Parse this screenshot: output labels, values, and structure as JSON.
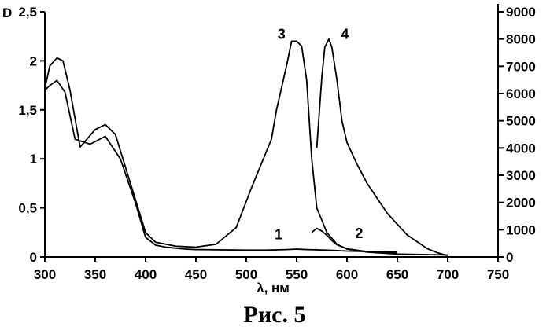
{
  "chart_data": {
    "type": "line",
    "title": "",
    "caption": "Рис. 5",
    "xlabel": "λ, нм",
    "ylabel": "D",
    "xlim": [
      300,
      750
    ],
    "ylim": [
      0,
      2.5
    ],
    "y2lim": [
      0,
      9000
    ],
    "grid": false,
    "x_ticks": [
      "300",
      "350",
      "400",
      "450",
      "500",
      "550",
      "600",
      "650",
      "700",
      "750"
    ],
    "y_ticks": [
      "0",
      "0,5",
      "1",
      "1,5",
      "2",
      "2,5"
    ],
    "y2_ticks": [
      "0",
      "1000",
      "2000",
      "3000",
      "4000",
      "5000",
      "6000",
      "7000",
      "8000",
      "9000"
    ],
    "series": [
      {
        "name": "1",
        "axis": "left",
        "x": [
          300,
          305,
          312,
          320,
          330,
          345,
          360,
          375,
          390,
          400,
          410,
          420,
          430,
          440,
          450,
          500,
          520,
          540,
          550,
          560,
          580,
          600,
          650
        ],
        "y": [
          1.7,
          1.75,
          1.8,
          1.68,
          1.2,
          1.15,
          1.23,
          1.0,
          0.55,
          0.2,
          0.12,
          0.1,
          0.09,
          0.08,
          0.075,
          0.07,
          0.07,
          0.075,
          0.08,
          0.075,
          0.07,
          0.06,
          0.05
        ]
      },
      {
        "name": "2",
        "axis": "right",
        "x": [
          565,
          570,
          575,
          580,
          585,
          590,
          600,
          620,
          650
        ],
        "y": [
          900,
          1050,
          950,
          800,
          600,
          450,
          300,
          200,
          150
        ]
      },
      {
        "name": "3",
        "axis": "left",
        "x": [
          300,
          305,
          312,
          318,
          325,
          335,
          350,
          360,
          370,
          385,
          400,
          410,
          430,
          450,
          470,
          490,
          505,
          515,
          525,
          530,
          540,
          545,
          550,
          555,
          560,
          565,
          570,
          580,
          590,
          600,
          620,
          650,
          700
        ],
        "y": [
          1.72,
          1.95,
          2.03,
          2.0,
          1.7,
          1.12,
          1.3,
          1.35,
          1.25,
          0.75,
          0.25,
          0.15,
          0.11,
          0.1,
          0.13,
          0.3,
          0.7,
          0.95,
          1.2,
          1.5,
          1.95,
          2.2,
          2.2,
          2.15,
          1.8,
          1.0,
          0.5,
          0.25,
          0.13,
          0.08,
          0.05,
          0.03,
          0.02
        ]
      },
      {
        "name": "4",
        "axis": "right",
        "x": [
          570,
          575,
          578,
          582,
          585,
          590,
          595,
          600,
          610,
          620,
          640,
          660,
          680,
          690,
          700
        ],
        "y": [
          4000,
          6600,
          7700,
          8000,
          7700,
          6500,
          5000,
          4200,
          3400,
          2700,
          1600,
          800,
          300,
          150,
          50
        ]
      }
    ],
    "annotations": [
      {
        "text": "1",
        "x": 532,
        "y": 0.23
      },
      {
        "text": "2",
        "x": 612,
        "y": 0.24
      },
      {
        "text": "3",
        "x": 535,
        "y": 2.27
      },
      {
        "text": "4",
        "x": 598,
        "y": 2.27
      }
    ]
  }
}
